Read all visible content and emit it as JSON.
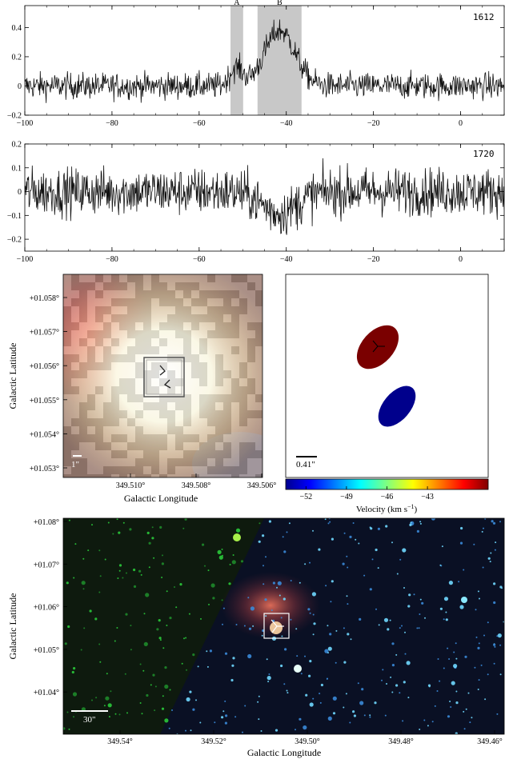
{
  "chart_data": [
    {
      "type": "line",
      "panel_label": "1612",
      "xlim": [
        -100,
        10
      ],
      "ylim": [
        -0.2,
        0.55
      ],
      "x_ticks": [
        -100,
        -80,
        -60,
        -40,
        -20,
        0
      ],
      "x_tick_labels": [
        "−100",
        "−80",
        "−60",
        "−40",
        "−20",
        "0"
      ],
      "y_ticks": [
        -0.2,
        0,
        0.2,
        0.4
      ],
      "y_tick_labels": [
        "−0.2",
        "0",
        "0.2",
        "0.4"
      ],
      "shaded_regions": [
        {
          "label": "A",
          "x_range": [
            -52.8,
            -49.9
          ]
        },
        {
          "label": "B",
          "x_range": [
            -46.6,
            -36.5
          ]
        }
      ],
      "noise_sigma": 0.045,
      "features": [
        {
          "center": -51.5,
          "width": 1.5,
          "amplitude": 0.12
        },
        {
          "center": -41.5,
          "width": 3.5,
          "amplitude": 0.38
        }
      ],
      "grid": false
    },
    {
      "type": "line",
      "panel_label": "1720",
      "xlim": [
        -100,
        10
      ],
      "ylim": [
        -0.25,
        0.2
      ],
      "x_ticks": [
        -100,
        -80,
        -60,
        -40,
        -20,
        0
      ],
      "x_tick_labels": [
        "−100",
        "−80",
        "−60",
        "−40",
        "−20",
        "0"
      ],
      "y_ticks": [
        -0.2,
        -0.1,
        0,
        0.1,
        0.2
      ],
      "y_tick_labels": [
        "−0.2",
        "−0.1",
        "0",
        "0.1",
        "0.2"
      ],
      "noise_sigma": 0.05,
      "features": [
        {
          "center": -41.5,
          "width": 4,
          "amplitude": -0.09
        }
      ],
      "grid": false
    },
    {
      "type": "image",
      "xlabel": "Galactic Longitude",
      "ylabel": "Galactic Latitude",
      "x_tick_labels": [
        "349.510°",
        "349.508°",
        "349.506°"
      ],
      "y_tick_labels": [
        "+01.058°",
        "+01.057°",
        "+01.056°",
        "+01.055°",
        "+01.054°",
        "+01.053°"
      ],
      "scale_bar_label": "1\""
    },
    {
      "type": "scatter",
      "scale_bar_label": "0.41\"",
      "colorbar_label": "Velocity (km s",
      "colorbar_label_sup": "−1",
      "colorbar_label_end": ")",
      "colorbar_range": [
        -53.5,
        -38.5
      ],
      "colorbar_ticks": [
        -52,
        -49,
        -46,
        -43
      ],
      "colorbar_tick_labels": [
        "−52",
        "−49",
        "−46",
        "−43"
      ],
      "sources": [
        {
          "velocity": -41.5,
          "color": "#7a0000"
        },
        {
          "velocity": -51.5,
          "color": "#00008c"
        }
      ]
    },
    {
      "type": "image",
      "xlabel": "Galactic Longitude",
      "ylabel": "Galactic Latitude",
      "x_tick_labels": [
        "349.54°",
        "349.52°",
        "349.50°",
        "349.48°",
        "349.46°"
      ],
      "y_tick_labels": [
        "+01.08°",
        "+01.07°",
        "+01.06°",
        "+01.05°",
        "+01.04°"
      ],
      "scale_bar_label": "30\""
    }
  ]
}
